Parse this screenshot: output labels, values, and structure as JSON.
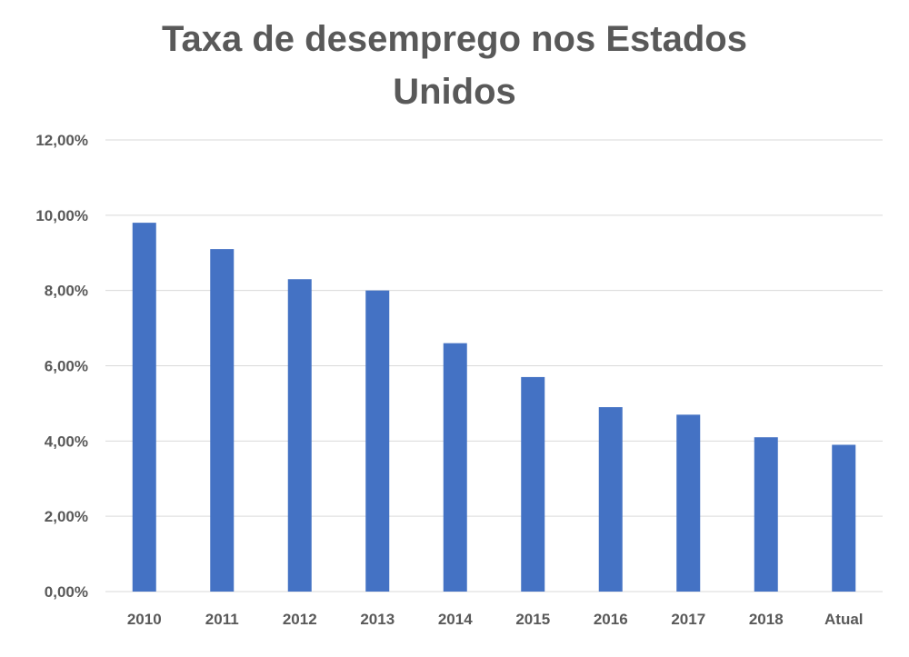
{
  "chart_data": {
    "type": "bar",
    "title_line1": "Taxa de desemprego nos Estados",
    "title_line2": "Unidos",
    "categories": [
      "2010",
      "2011",
      "2012",
      "2013",
      "2014",
      "2015",
      "2016",
      "2017",
      "2018",
      "Atual"
    ],
    "values": [
      9.8,
      9.1,
      8.3,
      8.0,
      6.6,
      5.7,
      4.9,
      4.7,
      4.1,
      3.9
    ],
    "yticks": [
      "0,00%",
      "2,00%",
      "4,00%",
      "6,00%",
      "8,00%",
      "10,00%",
      "12,00%"
    ],
    "ylim": [
      0,
      12
    ],
    "grid": true,
    "legend": "none",
    "colors": {
      "bar": "#4472c4",
      "grid": "#d9d9d9",
      "text": "#595959"
    }
  }
}
